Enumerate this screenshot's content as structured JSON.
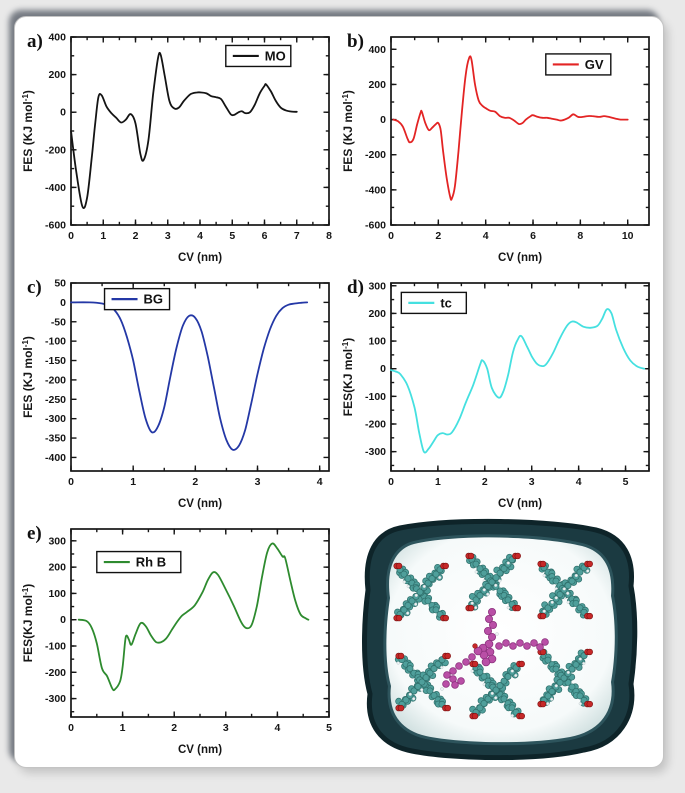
{
  "figure": {
    "background": "#e9e9e9",
    "card_background": "#ffffff"
  },
  "chart_data": [
    {
      "type": "line",
      "panel_label": "a)",
      "legend": "MO",
      "color": "#141414",
      "xlabel": "CV (nm)",
      "ylabel": "FES (KJ mol-1)",
      "xlim": [
        0,
        8
      ],
      "ylim": [
        -600,
        400
      ],
      "xticks": [
        0,
        1,
        2,
        3,
        4,
        5,
        6,
        7,
        8
      ],
      "xminor": 0.5,
      "yticks": [
        -600,
        -400,
        -200,
        0,
        200,
        400
      ],
      "yminor": 100,
      "legend_pos": {
        "fx": 0.6,
        "fy": 0.045
      },
      "points": [
        [
          0,
          -100
        ],
        [
          0.15,
          -300
        ],
        [
          0.35,
          -500
        ],
        [
          0.5,
          -455
        ],
        [
          0.65,
          -230
        ],
        [
          0.75,
          -60
        ],
        [
          0.85,
          80
        ],
        [
          0.95,
          90
        ],
        [
          1.1,
          30
        ],
        [
          1.25,
          -5
        ],
        [
          1.4,
          -30
        ],
        [
          1.55,
          -55
        ],
        [
          1.7,
          -40
        ],
        [
          1.85,
          -10
        ],
        [
          2.0,
          -60
        ],
        [
          2.15,
          -220
        ],
        [
          2.25,
          -255
        ],
        [
          2.4,
          -150
        ],
        [
          2.55,
          100
        ],
        [
          2.7,
          290
        ],
        [
          2.78,
          305
        ],
        [
          2.9,
          200
        ],
        [
          3.05,
          60
        ],
        [
          3.2,
          20
        ],
        [
          3.35,
          25
        ],
        [
          3.5,
          60
        ],
        [
          3.7,
          95
        ],
        [
          3.9,
          105
        ],
        [
          4.05,
          105
        ],
        [
          4.2,
          100
        ],
        [
          4.35,
          85
        ],
        [
          4.5,
          80
        ],
        [
          4.65,
          70
        ],
        [
          4.8,
          30
        ],
        [
          4.95,
          -10
        ],
        [
          5.05,
          -15
        ],
        [
          5.2,
          0
        ],
        [
          5.3,
          5
        ],
        [
          5.4,
          -5
        ],
        [
          5.55,
          0
        ],
        [
          5.7,
          40
        ],
        [
          5.85,
          100
        ],
        [
          6.0,
          140
        ],
        [
          6.05,
          148
        ],
        [
          6.2,
          110
        ],
        [
          6.35,
          60
        ],
        [
          6.5,
          25
        ],
        [
          6.65,
          10
        ],
        [
          6.85,
          3
        ],
        [
          7.0,
          2
        ]
      ]
    },
    {
      "type": "line",
      "panel_label": "b)",
      "legend": "GV",
      "color": "#e32424",
      "xlabel": "CV (nm)",
      "ylabel": "FES (KJ mol-1)",
      "xlim": [
        0,
        10.9
      ],
      "ylim": [
        -600,
        470
      ],
      "xticks": [
        0,
        2,
        4,
        6,
        8,
        10
      ],
      "xminor": 1,
      "yticks": [
        -600,
        -400,
        -200,
        0,
        200,
        400
      ],
      "yminor": 100,
      "legend_pos": {
        "fx": 0.6,
        "fy": 0.09
      },
      "points": [
        [
          0.1,
          0
        ],
        [
          0.3,
          -10
        ],
        [
          0.5,
          -40
        ],
        [
          0.7,
          -110
        ],
        [
          0.8,
          -130
        ],
        [
          0.95,
          -110
        ],
        [
          1.1,
          -30
        ],
        [
          1.25,
          40
        ],
        [
          1.3,
          45
        ],
        [
          1.45,
          -20
        ],
        [
          1.6,
          -60
        ],
        [
          1.75,
          -45
        ],
        [
          1.9,
          -25
        ],
        [
          2.0,
          -20
        ],
        [
          2.1,
          -60
        ],
        [
          2.2,
          -180
        ],
        [
          2.35,
          -330
        ],
        [
          2.5,
          -440
        ],
        [
          2.57,
          -450
        ],
        [
          2.7,
          -380
        ],
        [
          2.85,
          -180
        ],
        [
          3.0,
          50
        ],
        [
          3.15,
          250
        ],
        [
          3.3,
          350
        ],
        [
          3.4,
          340
        ],
        [
          3.55,
          200
        ],
        [
          3.7,
          110
        ],
        [
          3.85,
          80
        ],
        [
          4.0,
          65
        ],
        [
          4.2,
          50
        ],
        [
          4.4,
          45
        ],
        [
          4.6,
          20
        ],
        [
          4.8,
          10
        ],
        [
          5.0,
          10
        ],
        [
          5.2,
          -5
        ],
        [
          5.4,
          -25
        ],
        [
          5.55,
          -20
        ],
        [
          5.7,
          0
        ],
        [
          5.9,
          20
        ],
        [
          6.0,
          25
        ],
        [
          6.2,
          15
        ],
        [
          6.4,
          10
        ],
        [
          6.6,
          10
        ],
        [
          6.8,
          5
        ],
        [
          7.0,
          0
        ],
        [
          7.2,
          -5
        ],
        [
          7.5,
          10
        ],
        [
          7.7,
          30
        ],
        [
          7.9,
          15
        ],
        [
          8.1,
          15
        ],
        [
          8.3,
          20
        ],
        [
          8.5,
          20
        ],
        [
          8.8,
          15
        ],
        [
          9.0,
          20
        ],
        [
          9.2,
          15
        ],
        [
          9.5,
          5
        ],
        [
          9.7,
          0
        ],
        [
          10.0,
          0
        ]
      ]
    },
    {
      "type": "line",
      "panel_label": "c)",
      "legend": "BG",
      "color": "#2438a6",
      "xlabel": "CV (nm)",
      "ylabel": "FES (KJ mol-1)",
      "xlim": [
        0,
        4.15
      ],
      "ylim": [
        -435,
        50
      ],
      "xticks": [
        0,
        1,
        2,
        3,
        4
      ],
      "xminor": 0.5,
      "yticks": [
        -400,
        -350,
        -300,
        -250,
        -200,
        -150,
        -100,
        -50,
        0,
        50
      ],
      "yminor": 0,
      "legend_pos": {
        "fx": 0.13,
        "fy": 0.03
      },
      "points": [
        [
          0,
          0
        ],
        [
          0.3,
          0
        ],
        [
          0.5,
          -3
        ],
        [
          0.6,
          -8
        ],
        [
          0.7,
          -20
        ],
        [
          0.8,
          -45
        ],
        [
          0.9,
          -90
        ],
        [
          1.0,
          -150
        ],
        [
          1.1,
          -230
        ],
        [
          1.2,
          -300
        ],
        [
          1.3,
          -335
        ],
        [
          1.4,
          -320
        ],
        [
          1.5,
          -270
        ],
        [
          1.6,
          -190
        ],
        [
          1.7,
          -115
        ],
        [
          1.8,
          -60
        ],
        [
          1.9,
          -35
        ],
        [
          2.0,
          -40
        ],
        [
          2.1,
          -75
        ],
        [
          2.2,
          -140
        ],
        [
          2.3,
          -220
        ],
        [
          2.4,
          -300
        ],
        [
          2.5,
          -355
        ],
        [
          2.6,
          -380
        ],
        [
          2.7,
          -370
        ],
        [
          2.8,
          -330
        ],
        [
          2.9,
          -260
        ],
        [
          3.0,
          -185
        ],
        [
          3.1,
          -120
        ],
        [
          3.2,
          -70
        ],
        [
          3.3,
          -35
        ],
        [
          3.4,
          -15
        ],
        [
          3.5,
          -6
        ],
        [
          3.6,
          -3
        ],
        [
          3.7,
          -1
        ],
        [
          3.8,
          0
        ]
      ]
    },
    {
      "type": "line",
      "panel_label": "d)",
      "legend": "tc",
      "color": "#45e0e0",
      "xlabel": "CV (nm)",
      "ylabel": "FES(KJ mol-1)",
      "xlim": [
        0,
        5.5
      ],
      "ylim": [
        -370,
        310
      ],
      "xticks": [
        0,
        1,
        2,
        3,
        4,
        5
      ],
      "xminor": 0.5,
      "yticks": [
        -300,
        -200,
        -100,
        0,
        100,
        200,
        300
      ],
      "yminor": 50,
      "legend_pos": {
        "fx": 0.04,
        "fy": 0.05
      },
      "points": [
        [
          0,
          -5
        ],
        [
          0.1,
          -10
        ],
        [
          0.2,
          -20
        ],
        [
          0.35,
          -60
        ],
        [
          0.5,
          -140
        ],
        [
          0.6,
          -230
        ],
        [
          0.7,
          -300
        ],
        [
          0.8,
          -290
        ],
        [
          0.9,
          -265
        ],
        [
          1.0,
          -240
        ],
        [
          1.1,
          -233
        ],
        [
          1.2,
          -238
        ],
        [
          1.3,
          -230
        ],
        [
          1.45,
          -185
        ],
        [
          1.6,
          -120
        ],
        [
          1.75,
          -60
        ],
        [
          1.9,
          15
        ],
        [
          1.95,
          30
        ],
        [
          2.05,
          0
        ],
        [
          2.15,
          -70
        ],
        [
          2.3,
          -105
        ],
        [
          2.4,
          -80
        ],
        [
          2.5,
          -20
        ],
        [
          2.6,
          60
        ],
        [
          2.7,
          105
        ],
        [
          2.78,
          118
        ],
        [
          2.9,
          80
        ],
        [
          3.0,
          45
        ],
        [
          3.1,
          20
        ],
        [
          3.2,
          10
        ],
        [
          3.3,
          15
        ],
        [
          3.45,
          55
        ],
        [
          3.6,
          110
        ],
        [
          3.75,
          155
        ],
        [
          3.85,
          170
        ],
        [
          3.95,
          168
        ],
        [
          4.1,
          152
        ],
        [
          4.25,
          148
        ],
        [
          4.4,
          155
        ],
        [
          4.5,
          180
        ],
        [
          4.6,
          215
        ],
        [
          4.7,
          200
        ],
        [
          4.8,
          140
        ],
        [
          4.95,
          75
        ],
        [
          5.1,
          30
        ],
        [
          5.25,
          8
        ],
        [
          5.4,
          0
        ]
      ]
    },
    {
      "type": "line",
      "panel_label": "e)",
      "legend": "Rh B",
      "color": "#2e8b2f",
      "xlabel": "CV (nm)",
      "ylabel": "FES(KJ mol-1)",
      "xlim": [
        0,
        5
      ],
      "ylim": [
        -370,
        345
      ],
      "xticks": [
        0,
        1,
        2,
        3,
        4,
        5
      ],
      "xminor": 0.5,
      "yticks": [
        -300,
        -200,
        -100,
        0,
        100,
        200,
        300
      ],
      "yminor": 50,
      "legend_pos": {
        "fx": 0.1,
        "fy": 0.12
      },
      "points": [
        [
          0.15,
          0
        ],
        [
          0.3,
          -5
        ],
        [
          0.4,
          -30
        ],
        [
          0.5,
          -90
        ],
        [
          0.6,
          -185
        ],
        [
          0.7,
          -215
        ],
        [
          0.8,
          -262
        ],
        [
          0.85,
          -265
        ],
        [
          0.95,
          -235
        ],
        [
          1.0,
          -180
        ],
        [
          1.05,
          -80
        ],
        [
          1.08,
          -60
        ],
        [
          1.12,
          -75
        ],
        [
          1.17,
          -95
        ],
        [
          1.25,
          -55
        ],
        [
          1.35,
          -13
        ],
        [
          1.45,
          -25
        ],
        [
          1.55,
          -60
        ],
        [
          1.65,
          -85
        ],
        [
          1.75,
          -85
        ],
        [
          1.85,
          -70
        ],
        [
          1.95,
          -40
        ],
        [
          2.05,
          -10
        ],
        [
          2.15,
          15
        ],
        [
          2.25,
          30
        ],
        [
          2.4,
          55
        ],
        [
          2.55,
          105
        ],
        [
          2.65,
          150
        ],
        [
          2.75,
          180
        ],
        [
          2.85,
          170
        ],
        [
          3.0,
          115
        ],
        [
          3.15,
          55
        ],
        [
          3.3,
          -10
        ],
        [
          3.4,
          -32
        ],
        [
          3.5,
          -20
        ],
        [
          3.6,
          50
        ],
        [
          3.7,
          160
        ],
        [
          3.8,
          255
        ],
        [
          3.9,
          290
        ],
        [
          4.0,
          270
        ],
        [
          4.1,
          240
        ],
        [
          4.15,
          235
        ],
        [
          4.25,
          150
        ],
        [
          4.35,
          70
        ],
        [
          4.45,
          20
        ],
        [
          4.55,
          5
        ],
        [
          4.6,
          0
        ]
      ]
    }
  ],
  "molecule": {
    "description": "MOF framework with adsorbed dye molecule inside solvent cavity",
    "blob": "#1b3a41",
    "blob_edge": "#0e2429",
    "inner_tint": "#c2d6d6",
    "framework": "#4f9f9b",
    "framework_dark": "#2f6f6b",
    "oxygen": "#c62828",
    "hydrogen": "#eef3f4",
    "dye": "#b94fa6",
    "dye_dark": "#8c327e"
  }
}
